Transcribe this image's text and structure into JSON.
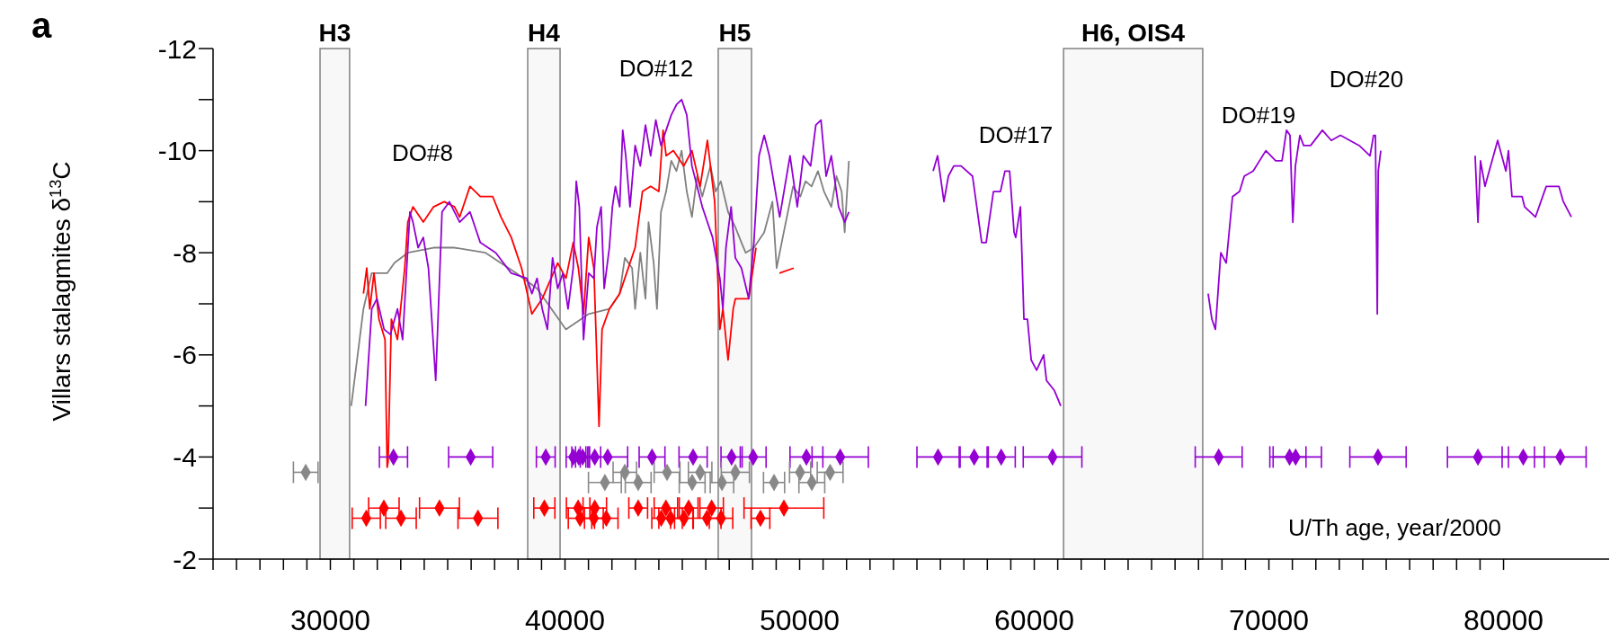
{
  "chart_data": {
    "type": "line",
    "ylabel": "Villars stalagmites δ$^{13}$C",
    "xlabel": "U/Th age, year/2000",
    "annotations": [
      "a",
      "DO#8",
      "DO#12",
      "DO#17",
      "DO#19",
      "DO#20"
    ],
    "xlim": [
      25000,
      84500
    ],
    "ylim": [
      -2,
      -12
    ],
    "xticks": [
      {
        "value": 25000,
        "label": null
      },
      {
        "value": 26000,
        "label": null
      },
      {
        "value": 27000,
        "label": null
      },
      {
        "value": 28000,
        "label": null
      },
      {
        "value": 29000,
        "label": null
      },
      30000,
      {
        "value": 31000,
        "label": null
      },
      {
        "value": 32000,
        "label": null
      },
      {
        "value": 33000,
        "label": null
      },
      {
        "value": 34000,
        "label": null
      },
      {
        "value": 35000,
        "label": null
      },
      {
        "value": 36000,
        "label": null
      },
      {
        "value": 37000,
        "label": null
      },
      {
        "value": 38000,
        "label": null
      },
      {
        "value": 39000,
        "label": null
      },
      40000,
      {
        "value": 41000,
        "label": null
      },
      {
        "value": 42000,
        "label": null
      },
      {
        "value": 43000,
        "label": null
      },
      {
        "value": 44000,
        "label": null
      },
      {
        "value": 45000,
        "label": null
      },
      {
        "value": 46000,
        "label": null
      },
      {
        "value": 47000,
        "label": null
      },
      {
        "value": 48000,
        "label": null
      },
      {
        "value": 49000,
        "label": null
      },
      50000,
      {
        "value": 51000,
        "label": null
      },
      {
        "value": 52000,
        "label": null
      },
      {
        "value": 53000,
        "label": null
      },
      {
        "value": 54000,
        "label": null
      },
      {
        "value": 55000,
        "label": null
      },
      {
        "value": 56000,
        "label": null
      },
      {
        "value": 57000,
        "label": null
      },
      {
        "value": 58000,
        "label": null
      },
      {
        "value": 59000,
        "label": null
      },
      60000,
      {
        "value": 61000,
        "label": null
      },
      {
        "value": 62000,
        "label": null
      },
      {
        "value": 63000,
        "label": null
      },
      {
        "value": 64000,
        "label": null
      },
      {
        "value": 65000,
        "label": null
      },
      {
        "value": 66000,
        "label": null
      },
      {
        "value": 67000,
        "label": null
      },
      {
        "value": 68000,
        "label": null
      },
      {
        "value": 69000,
        "label": null
      },
      70000,
      {
        "value": 71000,
        "label": null
      },
      {
        "value": 72000,
        "label": null
      },
      {
        "value": 73000,
        "label": null
      },
      {
        "value": 74000,
        "label": null
      },
      {
        "value": 75000,
        "label": null
      },
      {
        "value": 76000,
        "label": null
      },
      {
        "value": 77000,
        "label": null
      },
      {
        "value": 78000,
        "label": null
      },
      {
        "value": 79000,
        "label": null
      },
      80000
    ],
    "yticks": [
      -12,
      {
        "value": -11,
        "label": null
      },
      -10,
      {
        "value": -9,
        "label": null
      },
      -8,
      {
        "value": -7,
        "label": null
      },
      -6,
      {
        "value": -5,
        "label": null
      },
      -4,
      {
        "value": -3,
        "label": null
      },
      -2
    ],
    "grid": false,
    "marker": "none",
    "line_style": "solid",
    "bands": [
      {
        "axis": "x",
        "from": 29560,
        "to": 30820,
        "label": "H3",
        "color": "#808080"
      },
      {
        "axis": "x",
        "from": 38410,
        "to": 39790,
        "label": "H4",
        "color": "#808080"
      },
      {
        "axis": "x",
        "from": 46530,
        "to": 47950,
        "label": "H5",
        "color": "#808080"
      },
      {
        "axis": "x",
        "from": 61250,
        "to": 67180,
        "label": "H6, OIS4",
        "color": "#808080"
      }
    ],
    "series": [
      {
        "color": "#808080",
        "x": [
          30890,
          31410,
          31760,
          32420,
          32730,
          33300,
          34400,
          35290,
          36610,
          37930,
          38810,
          40040,
          41010,
          41890,
          42330,
          42550,
          42860,
          42990,
          43210,
          43430,
          43560,
          43780,
          43920,
          44090,
          44310,
          44530,
          44750,
          44970,
          45190,
          45410,
          45630,
          45850,
          46200,
          46420,
          46640,
          46950,
          47260,
          47520,
          47700,
          48050,
          48490,
          48840,
          49020,
          49280,
          49500,
          49720,
          50030,
          50250,
          50510,
          50780,
          51040,
          51350,
          51570,
          51790,
          51920,
          52100
        ],
        "values": [
          -5.0,
          -6.9,
          -7.6,
          -7.6,
          -7.8,
          -8.0,
          -8.1,
          -8.1,
          -8.0,
          -7.6,
          -7.3,
          -6.5,
          -6.8,
          -6.9,
          -7.2,
          -7.9,
          -7.7,
          -6.9,
          -8.0,
          -7.1,
          -8.6,
          -7.8,
          -6.9,
          -8.8,
          -9.2,
          -9.8,
          -9.6,
          -10.0,
          -9.2,
          -8.7,
          -9.5,
          -9.1,
          -9.7,
          -9.2,
          -9.4,
          -8.8,
          -8.5,
          -8.2,
          -8.0,
          -8.1,
          -8.4,
          -9.0,
          -7.7,
          -8.3,
          -8.8,
          -9.3,
          -9.1,
          -9.4,
          -9.3,
          -9.6,
          -9.2,
          -8.9,
          -9.5,
          -9.2,
          -8.4,
          -9.8
        ]
      },
      {
        "color": "#ff0000",
        "x": [
          31410,
          31550,
          31680,
          31860,
          32070,
          32330,
          32420,
          32460,
          32600,
          32860,
          33170,
          33300,
          33520,
          33960,
          34400,
          34850,
          35290,
          35510,
          35950,
          36390,
          36920,
          37270,
          37710,
          38150,
          38590,
          39030,
          39690,
          40040,
          40350,
          40570,
          40790,
          41010,
          41230,
          41360,
          41450,
          41580,
          41890,
          42330,
          42990,
          43300,
          43650,
          44000,
          44180,
          44310,
          44620,
          45060,
          45410,
          45760,
          46070,
          46380,
          46600,
          46730,
          46950,
          47170,
          47260,
          47830,
          48140,
          48700,
          49140,
          49750
        ],
        "values": [
          -7.2,
          -7.7,
          -6.9,
          -7.6,
          -6.7,
          -6.3,
          -3.8,
          -3.9,
          -6.7,
          -6.3,
          -7.7,
          -8.6,
          -8.9,
          -8.6,
          -8.9,
          -9.0,
          -8.9,
          -8.7,
          -9.3,
          -9.1,
          -9.1,
          -8.7,
          -8.3,
          -7.7,
          -6.8,
          -7.1,
          -7.8,
          -7.5,
          -8.2,
          -7.7,
          -6.8,
          -8.3,
          -7.7,
          -5.9,
          -4.6,
          -6.5,
          -6.9,
          -7.2,
          -8.1,
          -9.2,
          -9.3,
          -9.2,
          -10.4,
          -9.9,
          -10.0,
          -9.7,
          -10.0,
          -9.3,
          -10.2,
          -9.0,
          -6.5,
          -6.9,
          -5.9,
          -6.9,
          -7.1,
          -7.1,
          -8.1,
          null,
          -7.6,
          -7.7
        ]
      },
      {
        "color": "#9400d3",
        "x": [
          31500,
          31765,
          31985,
          32290,
          32560,
          32860,
          33080,
          33390,
          33520,
          33740,
          33960,
          34180,
          34490,
          34760,
          35070,
          35510,
          35950,
          36390,
          37050,
          37710,
          38370,
          38590,
          38810,
          39030,
          39250,
          39470,
          39690,
          39910,
          40130,
          40350,
          40480,
          40610,
          40790,
          41010,
          41230,
          41360,
          41540,
          41670,
          41890,
          42020,
          42150,
          42330,
          42460,
          42590,
          42770,
          42990,
          43210,
          43430,
          43650,
          43870,
          44090,
          44310,
          44530,
          44750,
          44970,
          45190,
          45410,
          45850,
          46290,
          46600,
          46730,
          46860,
          47080,
          47260,
          47520,
          47830,
          48050,
          48270,
          48490,
          48710,
          48930,
          49150,
          49370,
          49590,
          49900,
          50160,
          50470,
          50690,
          50910,
          51130,
          51350,
          51660,
          51920,
          52100,
          54000,
          55690,
          55880,
          56150,
          56340,
          56570,
          56880,
          57370,
          57760,
          57950,
          58260,
          58560,
          58750,
          58950,
          59140,
          59210,
          59410,
          59560,
          59710,
          59870,
          60100,
          60400,
          60520,
          60860,
          61130,
          64000,
          67410,
          67570,
          67720,
          67950,
          68180,
          68450,
          68750,
          68950,
          69330,
          69870,
          70290,
          70560,
          70750,
          70900,
          71020,
          71130,
          71320,
          71480,
          71780,
          72280,
          72660,
          73050,
          73850,
          74310,
          74460,
          74540,
          74620,
          74660,
          74770,
          77000,
          78790,
          78910,
          79020,
          79210,
          79750,
          80100,
          80210,
          80360,
          80790,
          80900,
          81360,
          81820,
          82360,
          82550,
          82890
        ],
        "values": [
          -5.0,
          -6.9,
          -7.1,
          -6.5,
          -6.4,
          -6.9,
          -6.3,
          -8.8,
          -8.6,
          -8.1,
          -8.3,
          -7.7,
          -5.5,
          -8.8,
          -9.0,
          -8.6,
          -8.8,
          -8.2,
          -8.0,
          -7.6,
          -7.5,
          -7.2,
          -7.5,
          -6.9,
          -6.5,
          -7.9,
          -7.3,
          -7.6,
          -6.9,
          -7.7,
          -9.4,
          -8.9,
          -6.3,
          -7.6,
          -7.5,
          -8.5,
          -8.9,
          -7.3,
          -8.1,
          -8.9,
          -9.3,
          -8.9,
          -10.4,
          -9.9,
          -8.9,
          -10.1,
          -9.7,
          -10.5,
          -9.9,
          -10.6,
          -10.1,
          -10.4,
          -10.7,
          -10.9,
          -11.0,
          -10.7,
          -9.7,
          -8.9,
          -8.3,
          -7.5,
          -6.9,
          -8.1,
          -8.9,
          -7.9,
          -7.7,
          -7.1,
          -8.2,
          -9.9,
          -10.3,
          -9.9,
          -9.3,
          -8.7,
          -9.3,
          -9.9,
          -8.9,
          -9.9,
          -9.7,
          -10.5,
          -10.6,
          -9.5,
          -9.9,
          -8.9,
          -8.6,
          -8.8,
          null,
          -9.6,
          -9.9,
          -9.0,
          -9.5,
          -9.7,
          -9.7,
          -9.5,
          -8.2,
          -8.2,
          -9.2,
          -9.2,
          -9.6,
          -9.6,
          -8.4,
          -8.3,
          -8.9,
          -6.7,
          -6.7,
          -5.9,
          -5.7,
          -6.0,
          -5.5,
          -5.3,
          -5.0,
          null,
          -7.2,
          -6.7,
          -6.5,
          -8.0,
          -7.8,
          -9.1,
          -9.2,
          -9.5,
          -9.6,
          -10.0,
          -9.8,
          -9.8,
          -10.4,
          -10.3,
          -8.6,
          -9.7,
          -10.3,
          -10.1,
          -10.1,
          -10.4,
          -10.2,
          -10.3,
          -10.1,
          -9.9,
          -10.3,
          -10.3,
          -6.8,
          -9.6,
          -10.0,
          null,
          -9.9,
          -8.6,
          -9.8,
          -9.3,
          -10.2,
          -9.6,
          -10.0,
          -9.1,
          -9.1,
          -8.9,
          -8.7,
          -9.3,
          -9.3,
          -9.0,
          -8.7
        ]
      },
      {
        "type": "scatter",
        "marker": "diamond",
        "color": "#9400d3",
        "x": [
          32690,
          35980,
          39180,
          40350,
          40590,
          40750,
          41270,
          41820,
          43710,
          45460,
          47100,
          48020,
          50290,
          51730,
          55900,
          57440,
          58590,
          60780,
          67860,
          70880,
          71140,
          74650,
          78910,
          80840,
          82420
        ],
        "values": [
          -4,
          -4,
          -4,
          -4,
          -4,
          -4,
          -4,
          -4,
          -4,
          -4,
          -4,
          -4,
          -4,
          -4,
          -4,
          -4,
          -4,
          -4,
          -4,
          -4,
          -4,
          -4,
          -4,
          -4,
          -4
        ],
        "xerrors": [
          600,
          940,
          400,
          300,
          300,
          300,
          250,
          850,
          550,
          600,
          450,
          550,
          700,
          1200,
          900,
          600,
          600,
          1250,
          1000,
          700,
          1100,
          1200,
          1300,
          900,
          1100
        ]
      },
      {
        "type": "scatter",
        "marker": "diamond",
        "color": "#888888",
        "x": [
          28950,
          41700,
          42550,
          43120,
          44350,
          45420,
          45760,
          46690,
          47260,
          48910,
          50020,
          50520,
          51300
        ],
        "values": [
          -3.7,
          -3.5,
          -3.7,
          -3.5,
          -3.7,
          -3.5,
          -3.7,
          -3.5,
          -3.7,
          -3.5,
          -3.7,
          -3.5,
          -3.7
        ],
        "xerrors": [
          525,
          700,
          500,
          550,
          550,
          550,
          500,
          500,
          600,
          450,
          450,
          550,
          550
        ]
      },
      {
        "type": "scatter",
        "marker": "diamond",
        "color": "#ff0000",
        "x": [
          31530,
          32280,
          33010,
          34650,
          36290,
          39120,
          40560,
          40640,
          41270,
          41230,
          41760,
          43120,
          44100,
          44300,
          44500,
          45070,
          45270,
          46050,
          46250,
          46650,
          48330,
          49330
        ],
        "values": [
          -2.8,
          -3.0,
          -2.8,
          -3.0,
          -2.8,
          -3.0,
          -3.0,
          -2.8,
          -3.0,
          -2.8,
          -2.8,
          -3.0,
          -2.8,
          -3.0,
          -2.8,
          -2.8,
          -3.0,
          -2.8,
          -3.0,
          -2.8,
          -2.8,
          -3.0
        ],
        "xerrors": [
          600,
          650,
          650,
          850,
          850,
          450,
          500,
          500,
          500,
          400,
          500,
          400,
          400,
          500,
          500,
          400,
          400,
          600,
          500,
          500,
          400,
          1700
        ]
      }
    ]
  }
}
